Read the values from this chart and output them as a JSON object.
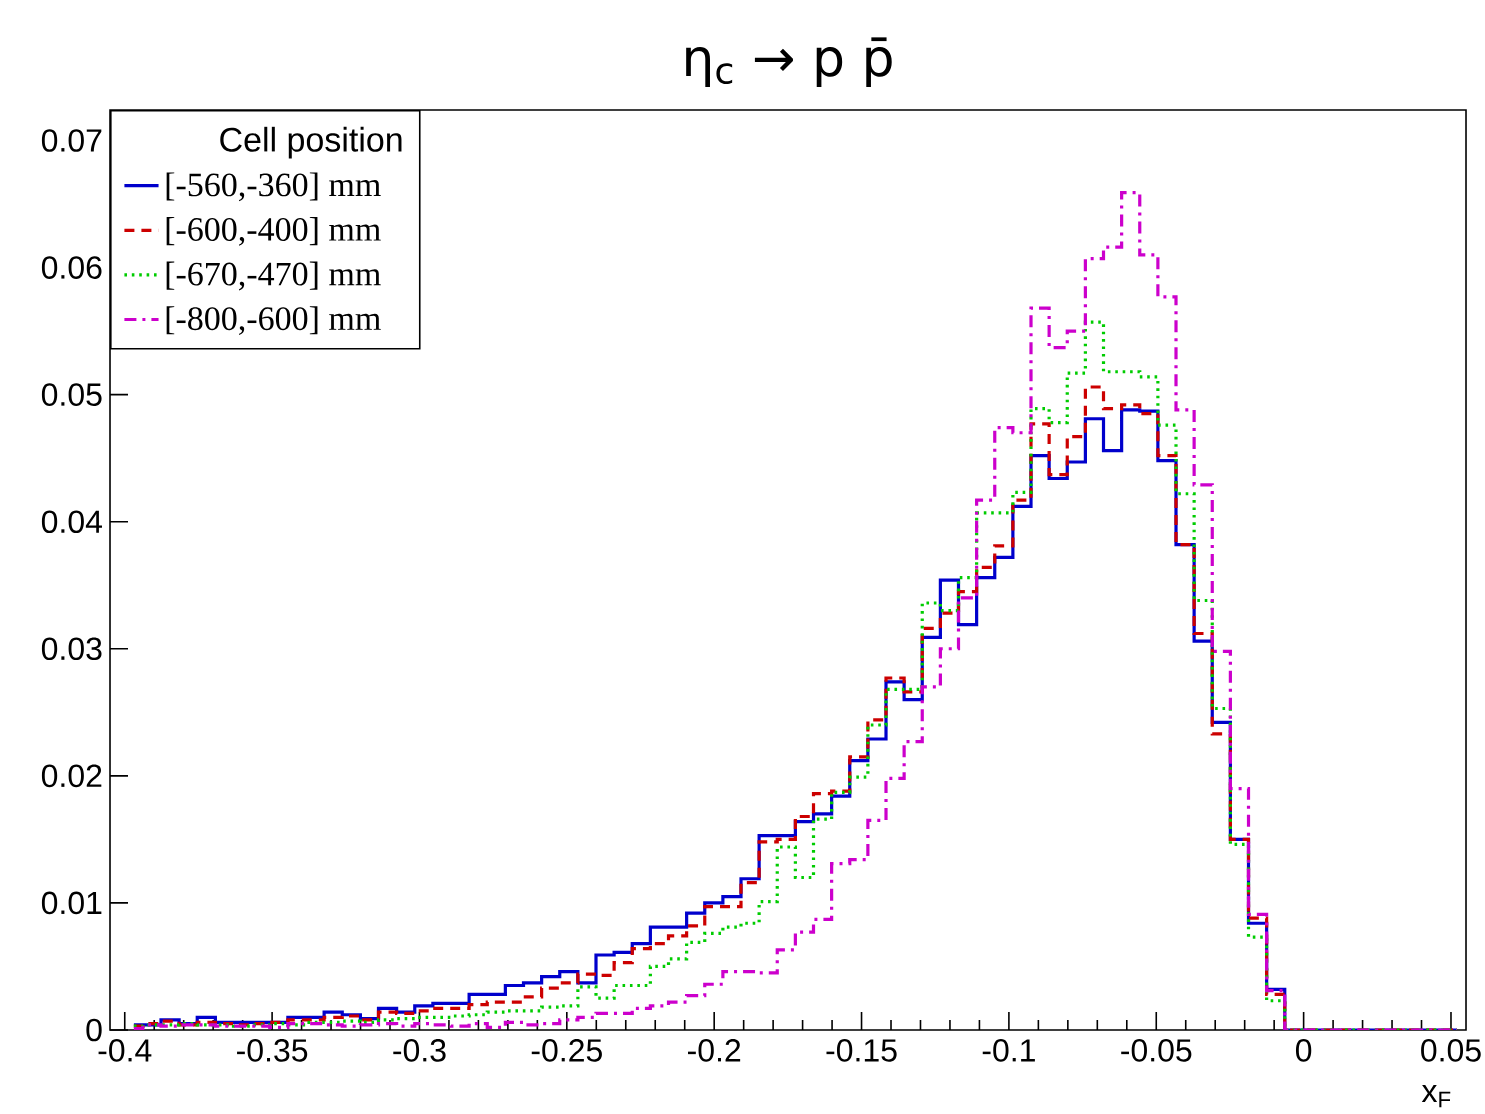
{
  "chart_data": {
    "type": "step",
    "title": "η$_{c}$ → p p̄",
    "xlabel": "x$_{F}$",
    "legend_title": "Cell position",
    "legend": "top left",
    "x": [
      -0.3969,
      -0.3908,
      -0.3846,
      -0.3785,
      -0.3723,
      -0.3662,
      -0.36,
      -0.3539,
      -0.3477,
      -0.3416,
      -0.3354,
      -0.3293,
      -0.3231,
      -0.317,
      -0.3108,
      -0.3047,
      -0.2985,
      -0.2924,
      -0.2862,
      -0.2801,
      -0.2739,
      -0.2678,
      -0.2616,
      -0.2555,
      -0.2493,
      -0.2432,
      -0.237,
      -0.2309,
      -0.2247,
      -0.2186,
      -0.2124,
      -0.2063,
      -0.2001,
      -0.194,
      -0.1878,
      -0.1817,
      -0.1755,
      -0.1694,
      -0.1632,
      -0.1571,
      -0.1509,
      -0.1448,
      -0.1386,
      -0.1325,
      -0.1263,
      -0.1202,
      -0.114,
      -0.1079,
      -0.1017,
      -0.0956,
      -0.0894,
      -0.0833,
      -0.0771,
      -0.071,
      -0.0648,
      -0.0587,
      -0.0525,
      -0.0464,
      -0.0402,
      -0.0341,
      -0.0279,
      -0.0218,
      -0.0156,
      -0.0095,
      -0.0033,
      0.0028,
      0.009,
      0.0151,
      0.0213,
      0.0274,
      0.0336,
      0.0397,
      0.0459,
      0.052
    ],
    "series": [
      {
        "name": "[-560,-360] mm",
        "color": "#0000cc",
        "line_style": "solid",
        "values": [
          0.0004,
          0.0004,
          0.0008,
          0.0005,
          0.001,
          0.0006,
          0.0006,
          0.0006,
          0.0006,
          0.001,
          0.001,
          0.0014,
          0.0012,
          0.0009,
          0.0017,
          0.0014,
          0.0019,
          0.0021,
          0.0021,
          0.0028,
          0.0028,
          0.0035,
          0.0037,
          0.0042,
          0.0046,
          0.0037,
          0.0059,
          0.0061,
          0.0068,
          0.0081,
          0.0081,
          0.0092,
          0.01,
          0.0105,
          0.0119,
          0.0153,
          0.0153,
          0.0164,
          0.017,
          0.0184,
          0.0212,
          0.0229,
          0.0274,
          0.026,
          0.0309,
          0.0354,
          0.0319,
          0.0356,
          0.0372,
          0.0412,
          0.0452,
          0.0434,
          0.0447,
          0.0481,
          0.0456,
          0.0488,
          0.0487,
          0.0448,
          0.0382,
          0.0306,
          0.0242,
          0.015,
          0.0084,
          0.0032,
          0,
          0,
          0,
          0,
          0,
          0,
          0,
          0,
          0,
          0
        ]
      },
      {
        "name": "[-600,-400] mm",
        "color": "#cc0000",
        "line_style": "dashed",
        "values": [
          0.0003,
          0.0005,
          0.0007,
          0.0004,
          0.0006,
          0.0005,
          0.0004,
          0.0005,
          0.0006,
          0.0008,
          0.0008,
          0.001,
          0.0011,
          0.0008,
          0.0014,
          0.0013,
          0.0015,
          0.0017,
          0.0017,
          0.002,
          0.0022,
          0.0022,
          0.0026,
          0.0033,
          0.0037,
          0.0044,
          0.0043,
          0.0053,
          0.0064,
          0.0068,
          0.0074,
          0.0082,
          0.0097,
          0.0097,
          0.0116,
          0.0148,
          0.015,
          0.0168,
          0.0186,
          0.0188,
          0.0215,
          0.0244,
          0.0277,
          0.0266,
          0.0316,
          0.0328,
          0.0345,
          0.0364,
          0.0381,
          0.0417,
          0.0477,
          0.0437,
          0.0467,
          0.0506,
          0.0489,
          0.0492,
          0.0485,
          0.0452,
          0.0382,
          0.0312,
          0.0233,
          0.015,
          0.0088,
          0.0028,
          0,
          0,
          0,
          0,
          0,
          0,
          0,
          0,
          0,
          0
        ]
      },
      {
        "name": "[-670,-470] mm",
        "color": "#00cc00",
        "line_style": "dotted",
        "values": [
          0.0003,
          0.0004,
          0.0004,
          0.0005,
          0.0004,
          0.0004,
          0.0003,
          0.0004,
          0.0005,
          0.0004,
          0.0006,
          0.0006,
          0.0007,
          0.0006,
          0.0008,
          0.0009,
          0.001,
          0.001,
          0.0011,
          0.0012,
          0.0014,
          0.0015,
          0.0015,
          0.0018,
          0.0019,
          0.0034,
          0.0025,
          0.0035,
          0.0035,
          0.005,
          0.0056,
          0.0069,
          0.0076,
          0.0081,
          0.0084,
          0.0101,
          0.0144,
          0.012,
          0.0166,
          0.0187,
          0.0199,
          0.024,
          0.0268,
          0.0268,
          0.0336,
          0.033,
          0.0356,
          0.0407,
          0.0407,
          0.0423,
          0.0489,
          0.0478,
          0.0517,
          0.0557,
          0.0518,
          0.0518,
          0.0514,
          0.0476,
          0.0422,
          0.0338,
          0.0253,
          0.0146,
          0.0073,
          0.0023,
          0,
          0,
          0,
          0,
          0,
          0,
          0,
          0,
          0,
          0
        ]
      },
      {
        "name": "[-800,-600] mm",
        "color": "#cc00cc",
        "line_style": "dashdot",
        "values": [
          0.0001,
          0.0004,
          0.0003,
          0.0004,
          0.0004,
          0.0003,
          0.0003,
          0.0003,
          0.0002,
          0.0005,
          0.0005,
          0.0004,
          0.0003,
          0.0004,
          0.0005,
          0.0003,
          0.0005,
          0.0004,
          0.0003,
          0.0005,
          0.0002,
          0.0006,
          0.0004,
          0.0005,
          0.0008,
          0.001,
          0.0013,
          0.0013,
          0.0017,
          0.0019,
          0.0022,
          0.0027,
          0.0036,
          0.0046,
          0.0046,
          0.0045,
          0.0063,
          0.0077,
          0.0087,
          0.0131,
          0.0134,
          0.0165,
          0.0198,
          0.0227,
          0.027,
          0.03,
          0.034,
          0.0417,
          0.0474,
          0.047,
          0.0568,
          0.0537,
          0.055,
          0.0607,
          0.0616,
          0.0659,
          0.061,
          0.0577,
          0.0488,
          0.0429,
          0.0298,
          0.019,
          0.0091,
          0.0031,
          0,
          0,
          0,
          0,
          0,
          0,
          0,
          0,
          0,
          0
        ]
      }
    ],
    "xlim": [
      -0.405,
      0.0551
    ],
    "ylim": [
      0,
      0.0724
    ],
    "xticks": [
      -0.4,
      -0.35,
      -0.3,
      -0.25,
      -0.2,
      -0.15,
      -0.1,
      -0.05,
      0,
      0.05
    ],
    "yticks": [
      0,
      0.01,
      0.02,
      0.03,
      0.04,
      0.05,
      0.06,
      0.07
    ]
  }
}
